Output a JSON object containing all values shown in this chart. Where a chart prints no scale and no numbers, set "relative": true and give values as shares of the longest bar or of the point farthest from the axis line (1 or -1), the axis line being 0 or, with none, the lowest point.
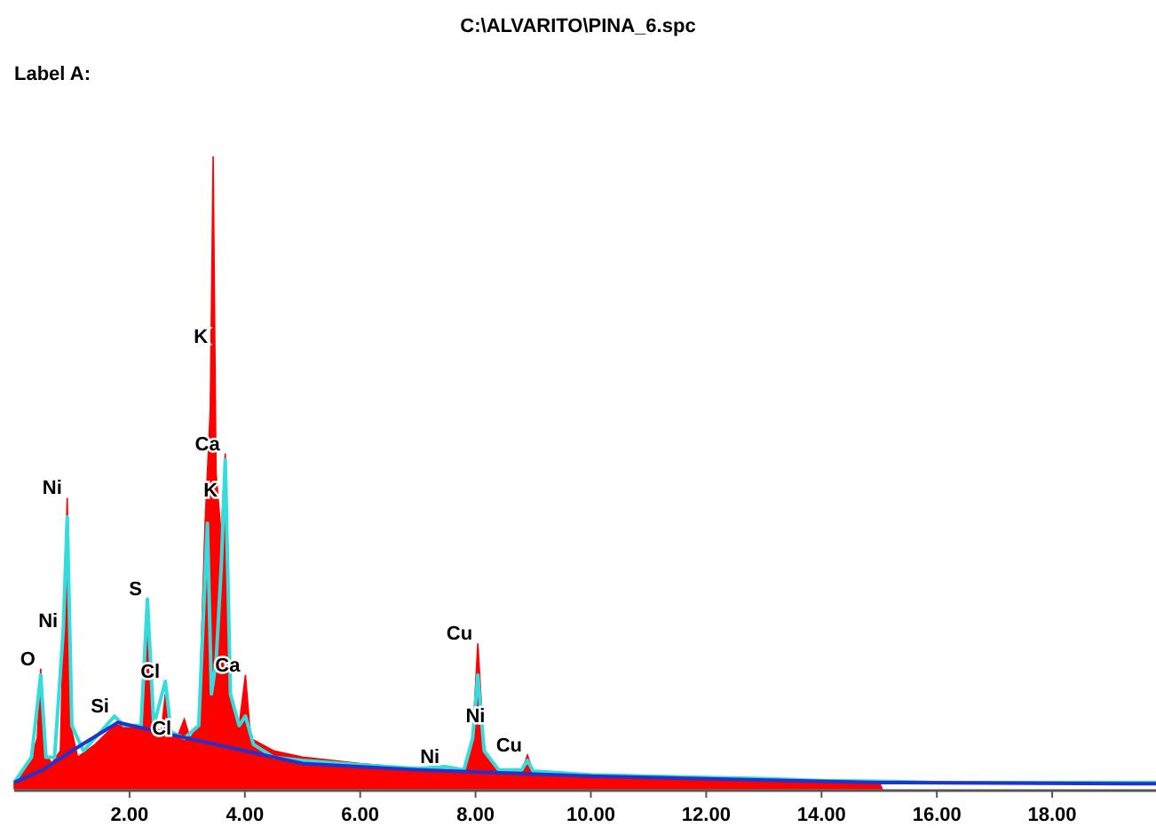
{
  "chart_data": {
    "type": "area",
    "title": "C:\\ALVARITO\\PINA_6.spc",
    "subtitle": "Label A:",
    "relative": true,
    "xlim": [
      0,
      19.8
    ],
    "xticks": [
      {
        "value": 2,
        "label": "2.00"
      },
      {
        "value": 4,
        "label": "4.00"
      },
      {
        "value": 6,
        "label": "6.00"
      },
      {
        "value": 8,
        "label": "8.00"
      },
      {
        "value": 10,
        "label": "10.00"
      },
      {
        "value": 12,
        "label": "12.00"
      },
      {
        "value": 14,
        "label": "14.00"
      },
      {
        "value": 16,
        "label": "16.00"
      },
      {
        "value": 18,
        "label": "18.00"
      }
    ],
    "grid": false,
    "series": [
      {
        "color": "#ff0000",
        "x": [
          0,
          0.15,
          0.3,
          0.4,
          0.46,
          0.52,
          0.65,
          0.8,
          0.85,
          0.92,
          0.98,
          1.1,
          1.4,
          1.74,
          2.0,
          2.2,
          2.31,
          2.4,
          2.55,
          2.62,
          2.7,
          2.82,
          2.95,
          3.05,
          3.2,
          3.31,
          3.4,
          3.45,
          3.5,
          3.59,
          3.66,
          3.75,
          3.9,
          4.01,
          4.1,
          4.3,
          4.5,
          5,
          6,
          7,
          7.47,
          7.8,
          7.95,
          8.04,
          8.15,
          8.4,
          8.8,
          8.9,
          9.0,
          10,
          11,
          12,
          13,
          14,
          15,
          15.05
        ],
        "values": [
          0.01,
          0.03,
          0.05,
          0.08,
          0.19,
          0.06,
          0.04,
          0.06,
          0.25,
          0.46,
          0.1,
          0.05,
          0.07,
          0.1,
          0.1,
          0.1,
          0.25,
          0.1,
          0.09,
          0.15,
          0.09,
          0.08,
          0.11,
          0.08,
          0.1,
          0.42,
          0.6,
          1.0,
          0.5,
          0.4,
          0.53,
          0.15,
          0.1,
          0.18,
          0.08,
          0.07,
          0.06,
          0.05,
          0.04,
          0.032,
          0.03,
          0.03,
          0.08,
          0.23,
          0.06,
          0.028,
          0.027,
          0.053,
          0.027,
          0.02,
          0.018,
          0.017,
          0.015,
          0.013,
          0.01,
          0
        ]
      },
      {
        "type": "line",
        "color": "#33dddd",
        "x": [
          0,
          0.3,
          0.46,
          0.55,
          0.7,
          0.85,
          0.92,
          1.0,
          1.2,
          1.5,
          1.74,
          1.9,
          2.2,
          2.31,
          2.42,
          2.62,
          2.72,
          2.95,
          3.2,
          3.35,
          3.42,
          3.5,
          3.59,
          3.66,
          3.75,
          3.9,
          4.01,
          4.15,
          4.5,
          5,
          6,
          7,
          7.47,
          7.8,
          7.95,
          8.04,
          8.15,
          8.4,
          8.8,
          8.9,
          9.0,
          10,
          11,
          12,
          13,
          14,
          15,
          16,
          18,
          19.8
        ],
        "values": [
          0.01,
          0.05,
          0.18,
          0.05,
          0.05,
          0.25,
          0.43,
          0.1,
          0.06,
          0.09,
          0.115,
          0.1,
          0.1,
          0.3,
          0.1,
          0.17,
          0.09,
          0.08,
          0.1,
          0.42,
          0.15,
          0.2,
          0.35,
          0.52,
          0.15,
          0.1,
          0.115,
          0.07,
          0.05,
          0.045,
          0.038,
          0.032,
          0.035,
          0.03,
          0.08,
          0.18,
          0.06,
          0.03,
          0.03,
          0.045,
          0.028,
          0.022,
          0.02,
          0.018,
          0.016,
          0.013,
          0.012,
          0.01,
          0.01,
          0.01
        ]
      },
      {
        "type": "line",
        "color": "#2233cc",
        "x": [
          0,
          0.5,
          1.0,
          1.8,
          2.5,
          3.5,
          5,
          7,
          10,
          15,
          19.8
        ],
        "values": [
          0.01,
          0.03,
          0.06,
          0.105,
          0.09,
          0.07,
          0.04,
          0.03,
          0.02,
          0.01,
          0.008
        ]
      }
    ],
    "annotations": [
      {
        "text": "O",
        "x": 0.46,
        "y": 0.19
      },
      {
        "text": "Ni",
        "x": 0.92,
        "y": 0.46
      },
      {
        "text": "Ni",
        "x": 0.85,
        "y": 0.25
      },
      {
        "text": "Si",
        "x": 1.74,
        "y": 0.115
      },
      {
        "text": "S",
        "x": 2.31,
        "y": 0.3
      },
      {
        "text": "Cl",
        "x": 2.62,
        "y": 0.17
      },
      {
        "text": "Cl",
        "x": 2.82,
        "y": 0.08
      },
      {
        "text": "K",
        "x": 3.45,
        "y": 0.7
      },
      {
        "text": "Ca",
        "x": 3.66,
        "y": 0.53
      },
      {
        "text": "K",
        "x": 3.62,
        "y": 0.456
      },
      {
        "text": "Ca",
        "x": 4.01,
        "y": 0.18
      },
      {
        "text": "Ni",
        "x": 7.47,
        "y": 0.035
      },
      {
        "text": "Cu",
        "x": 8.04,
        "y": 0.23
      },
      {
        "text": "Ni",
        "x": 8.26,
        "y": 0.1
      },
      {
        "text": "Cu",
        "x": 8.9,
        "y": 0.053
      }
    ]
  }
}
